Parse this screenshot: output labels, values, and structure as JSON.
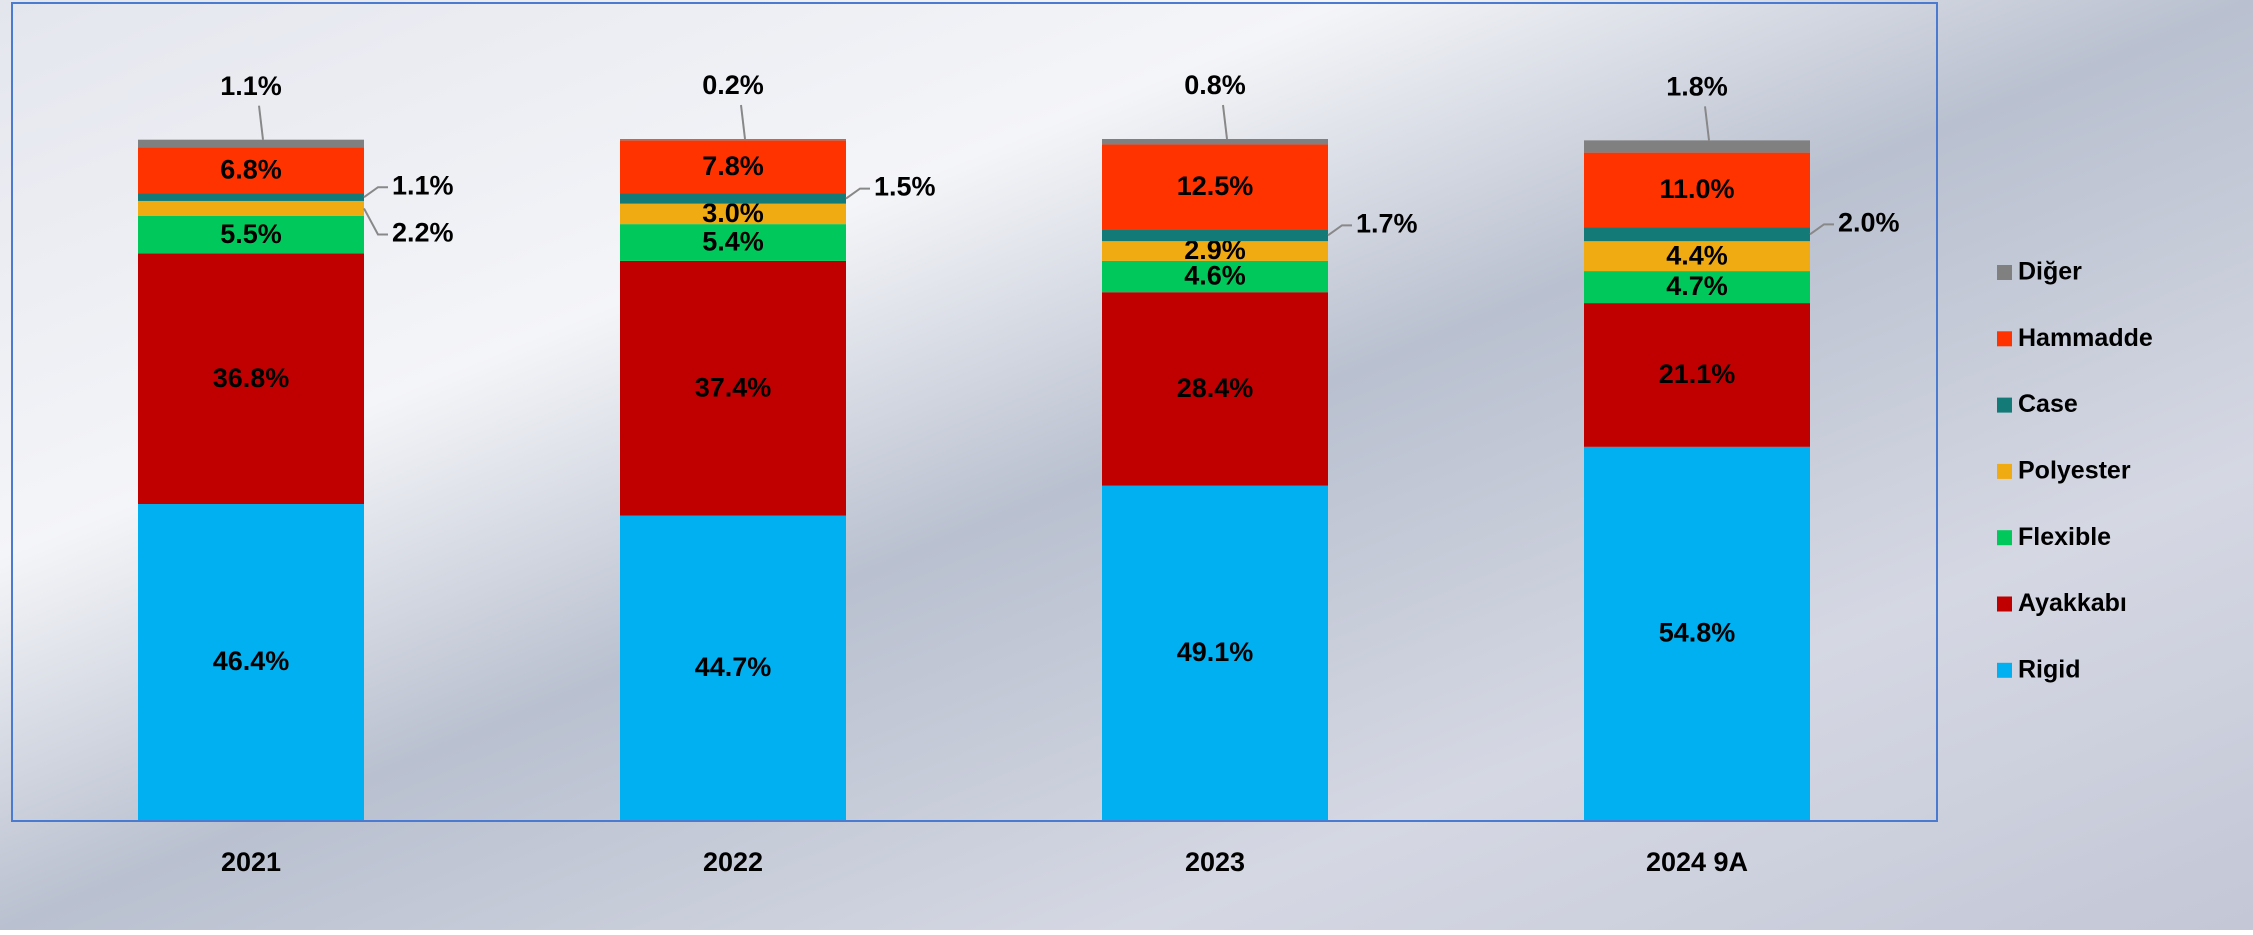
{
  "chart_data": {
    "type": "stacked_bar",
    "categories": [
      "2021",
      "2022",
      "2023",
      "2024 9A"
    ],
    "series": [
      {
        "name": "Rigid",
        "color": "#00b0f0",
        "values": [
          46.4,
          44.7,
          49.1,
          54.8
        ],
        "value_labels": [
          "46.4%",
          "44.7%",
          "49.1%",
          "54.8%"
        ]
      },
      {
        "name": "Ayakkabı",
        "color": "#c00000",
        "values": [
          36.8,
          37.4,
          28.4,
          21.1
        ],
        "value_labels": [
          "36.8%",
          "37.4%",
          "28.4%",
          "21.1%"
        ]
      },
      {
        "name": "Flexible",
        "color": "#00c85a",
        "values": [
          5.5,
          5.4,
          4.6,
          4.7
        ],
        "value_labels": [
          "5.5%",
          "5.4%",
          "4.6%",
          "4.7%"
        ]
      },
      {
        "name": "Polyester",
        "color": "#f0aa12",
        "values": [
          2.2,
          3.0,
          2.9,
          4.4
        ],
        "value_labels": [
          "2.2%",
          "3.0%",
          "2.9%",
          "4.4%"
        ]
      },
      {
        "name": "Case",
        "color": "#137a78",
        "values": [
          1.1,
          1.5,
          1.7,
          2.0
        ],
        "value_labels": [
          "1.1%",
          "1.5%",
          "1.7%",
          "2.0%"
        ]
      },
      {
        "name": "Hammadde",
        "color": "#ff3300",
        "values": [
          6.8,
          7.8,
          12.5,
          11.0
        ],
        "value_labels": [
          "6.8%",
          "7.8%",
          "12.5%",
          "11.0%"
        ]
      },
      {
        "name": "Diğer",
        "color": "#808080",
        "values": [
          1.1,
          0.2,
          0.8,
          1.8
        ],
        "value_labels": [
          "1.1%",
          "0.2%",
          "0.8%",
          "1.8%"
        ]
      }
    ],
    "legend": "right"
  }
}
